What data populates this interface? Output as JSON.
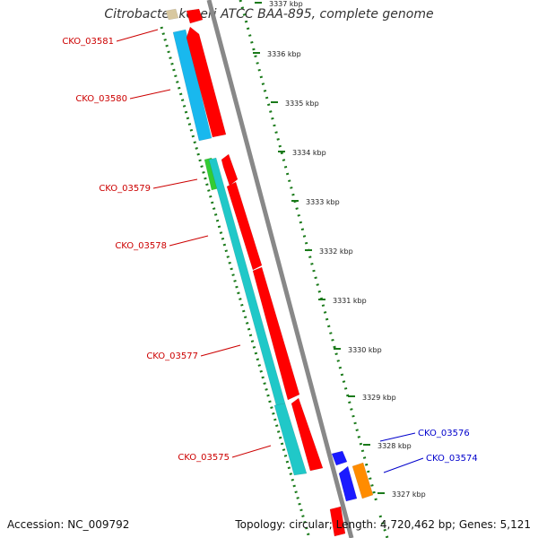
{
  "title": "Citrobacter koseri ATCC BAA-895, complete genome",
  "footer": {
    "accession": "Accession: NC_009792",
    "summary": "Topology: circular; Length: 4,720,462 bp; Genes: 5,121"
  },
  "colors": {
    "forward_cds": "#ff0000",
    "reverse_cds": "#1a1aff",
    "cds_match_blue": "#19b8ee",
    "cds_match_teal": "#20c8c8",
    "cds_match_green": "#33cc33",
    "cds_match_orange": "#ff8c00",
    "backbone": "#888888",
    "tick": "#1a7a1a",
    "label_forward": "#cc0000",
    "label_reverse": "#0000cc"
  },
  "scale": {
    "unit": "kbp",
    "ticks": [
      {
        "label": "3337 kbp",
        "kbp": 3337
      },
      {
        "label": "3336 kbp",
        "kbp": 3336
      },
      {
        "label": "3335 kbp",
        "kbp": 3335
      },
      {
        "label": "3334 kbp",
        "kbp": 3334
      },
      {
        "label": "3333 kbp",
        "kbp": 3333
      },
      {
        "label": "3332 kbp",
        "kbp": 3332
      },
      {
        "label": "3331 kbp",
        "kbp": 3331
      },
      {
        "label": "3330 kbp",
        "kbp": 3330
      },
      {
        "label": "3329 kbp",
        "kbp": 3329
      },
      {
        "label": "3328 kbp",
        "kbp": 3328
      },
      {
        "label": "3327 kbp",
        "kbp": 3327
      }
    ]
  },
  "genes": [
    {
      "name": "CKO_03581",
      "strand": "forward"
    },
    {
      "name": "CKO_03580",
      "strand": "forward"
    },
    {
      "name": "CKO_03579",
      "strand": "forward"
    },
    {
      "name": "CKO_03578",
      "strand": "forward"
    },
    {
      "name": "CKO_03577",
      "strand": "forward"
    },
    {
      "name": "CKO_03575",
      "strand": "forward"
    },
    {
      "name": "CKO_03576",
      "strand": "reverse"
    },
    {
      "name": "CKO_03574",
      "strand": "reverse"
    }
  ]
}
